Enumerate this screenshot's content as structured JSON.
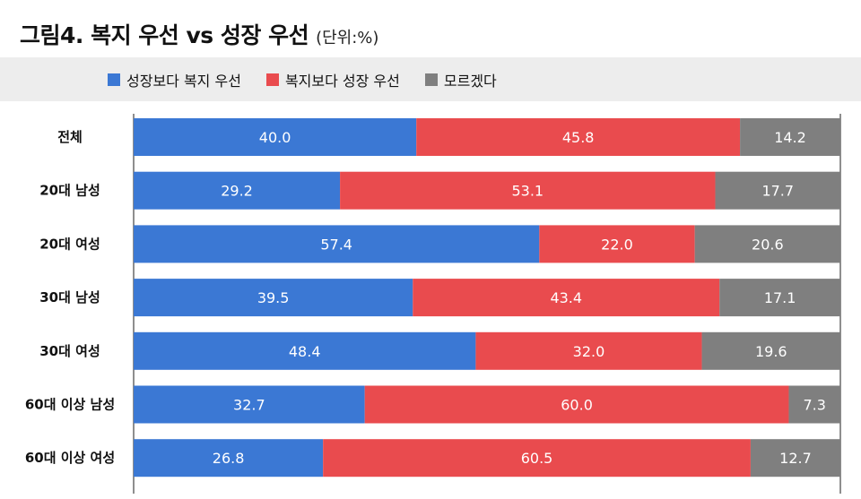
{
  "header": {
    "title": "그림4. 복지 우선 vs 성장 우선",
    "unit": "(단위:%)"
  },
  "legend": [
    {
      "label": "성장보다 복지 우선",
      "color": "#3b78d4"
    },
    {
      "label": "복지보다 성장 우선",
      "color": "#e94b4e"
    },
    {
      "label": "모르겠다",
      "color": "#7f7f7f"
    }
  ],
  "chart_data": {
    "type": "bar",
    "orientation": "horizontal",
    "stacked": true,
    "categories": [
      "전체",
      "20대 남성",
      "20대 여성",
      "30대 남성",
      "30대 여성",
      "60대 이상 남성",
      "60대 이상 여성"
    ],
    "series": [
      {
        "name": "성장보다 복지 우선",
        "color": "#3b78d4",
        "values": [
          40.0,
          29.2,
          57.4,
          39.5,
          48.4,
          32.7,
          26.8
        ]
      },
      {
        "name": "복지보다 성장 우선",
        "color": "#e94b4e",
        "values": [
          45.8,
          53.1,
          22.0,
          43.4,
          32.0,
          60.0,
          60.5
        ]
      },
      {
        "name": "모르겠다",
        "color": "#7f7f7f",
        "values": [
          14.2,
          17.7,
          20.6,
          17.1,
          19.6,
          7.3,
          12.7
        ]
      }
    ],
    "value_labels": [
      [
        "40.0",
        "29.2",
        "57.4",
        "39.5",
        "48.4",
        "32.7",
        "26.8"
      ],
      [
        "45.8",
        "53.1",
        "22.0",
        "43.4",
        "32.0",
        "60.0",
        "60.5"
      ],
      [
        "14.2",
        "17.7",
        "20.6",
        "17.1",
        "19.6",
        "7.3",
        "12.7"
      ]
    ],
    "xlim": [
      0,
      100
    ],
    "title": "그림4. 복지 우선 vs 성장 우선",
    "unit": "(단위:%)"
  }
}
